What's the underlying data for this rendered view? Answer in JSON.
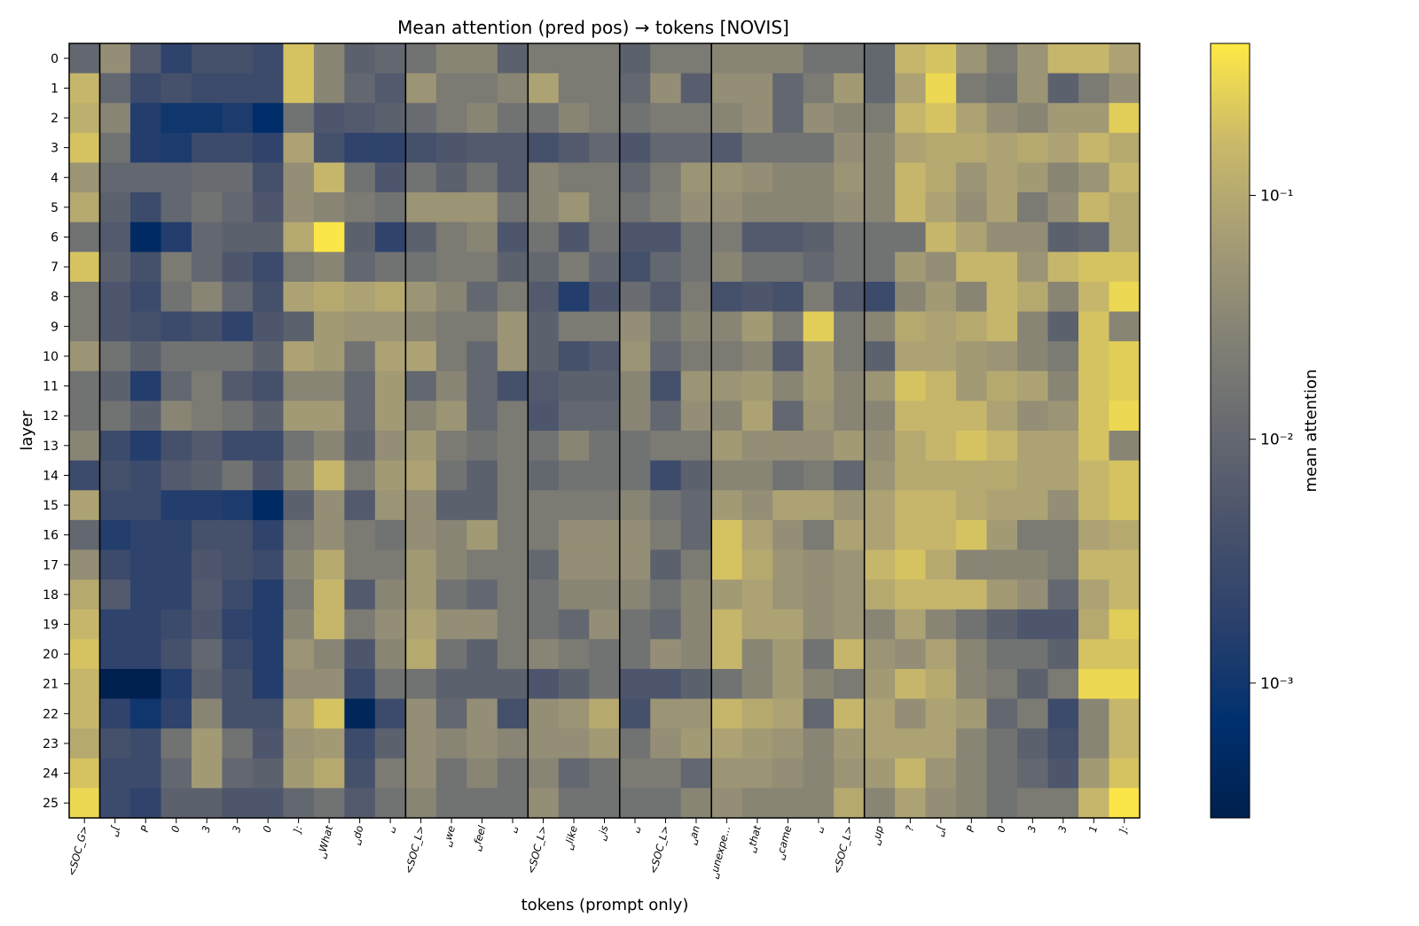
{
  "chart_data": {
    "type": "heatmap",
    "title": "Mean attention (pred pos) → tokens [NOVIS]",
    "xlabel": "tokens (prompt only)",
    "ylabel": "layer",
    "colorbar_label": "mean attention",
    "colormap": "cividis",
    "scale": "log",
    "value_range": [
      0.00028,
      0.42
    ],
    "colorbar_ticks": [
      {
        "value": 0.1,
        "label": "10⁻¹"
      },
      {
        "value": 0.01,
        "label": "10⁻²"
      },
      {
        "value": 0.001,
        "label": "10⁻³"
      }
    ],
    "x_tokens": [
      "<SOC_G>",
      "␣[",
      "P",
      "0",
      "3",
      "3",
      "0",
      "]:",
      "␣What",
      "␣do",
      "␣",
      "<SOC_L>",
      "␣we",
      "␣feel",
      "␣",
      "<SOC_L>",
      "␣like",
      "␣is",
      "␣",
      "<SOC_L>",
      "␣an",
      "␣unexpe...",
      "␣that",
      "␣came",
      "␣",
      "<SOC_L>",
      "␣up",
      "?",
      "␣[",
      "P",
      "0",
      "3",
      "3",
      "1",
      "]:"
    ],
    "y_layers": [
      "0",
      "1",
      "2",
      "3",
      "4",
      "5",
      "6",
      "7",
      "8",
      "9",
      "10",
      "11",
      "12",
      "13",
      "14",
      "15",
      "16",
      "17",
      "18",
      "19",
      "20",
      "21",
      "22",
      "23",
      "24",
      "25"
    ],
    "separator_after_columns": [
      0,
      10,
      14,
      17,
      20,
      25
    ],
    "values": [
      [
        0.01,
        0.04,
        0.006,
        0.002,
        0.004,
        0.004,
        0.003,
        0.2,
        0.03,
        0.008,
        0.01,
        0.015,
        0.03,
        0.03,
        0.008,
        0.02,
        0.02,
        0.02,
        0.008,
        0.02,
        0.02,
        0.03,
        0.03,
        0.03,
        0.015,
        0.015,
        0.01,
        0.15,
        0.2,
        0.05,
        0.02,
        0.05,
        0.15,
        0.15,
        0.08
      ],
      [
        0.15,
        0.01,
        0.003,
        0.004,
        0.003,
        0.003,
        0.003,
        0.2,
        0.03,
        0.01,
        0.006,
        0.05,
        0.02,
        0.02,
        0.03,
        0.08,
        0.02,
        0.02,
        0.01,
        0.04,
        0.007,
        0.04,
        0.04,
        0.01,
        0.02,
        0.06,
        0.01,
        0.08,
        0.3,
        0.02,
        0.015,
        0.05,
        0.008,
        0.02,
        0.04
      ],
      [
        0.12,
        0.03,
        0.0015,
        0.001,
        0.001,
        0.0013,
        0.0006,
        0.015,
        0.005,
        0.006,
        0.008,
        0.012,
        0.02,
        0.03,
        0.015,
        0.015,
        0.03,
        0.02,
        0.015,
        0.02,
        0.02,
        0.03,
        0.04,
        0.01,
        0.04,
        0.03,
        0.02,
        0.15,
        0.2,
        0.08,
        0.04,
        0.03,
        0.06,
        0.06,
        0.25
      ],
      [
        0.2,
        0.015,
        0.0015,
        0.0013,
        0.003,
        0.003,
        0.002,
        0.08,
        0.004,
        0.002,
        0.002,
        0.004,
        0.005,
        0.006,
        0.006,
        0.004,
        0.006,
        0.01,
        0.005,
        0.01,
        0.01,
        0.006,
        0.015,
        0.015,
        0.015,
        0.04,
        0.03,
        0.08,
        0.1,
        0.1,
        0.08,
        0.1,
        0.08,
        0.15,
        0.1
      ],
      [
        0.05,
        0.01,
        0.01,
        0.01,
        0.012,
        0.012,
        0.004,
        0.04,
        0.15,
        0.015,
        0.005,
        0.015,
        0.008,
        0.015,
        0.006,
        0.03,
        0.02,
        0.02,
        0.01,
        0.02,
        0.05,
        0.05,
        0.04,
        0.03,
        0.03,
        0.05,
        0.03,
        0.15,
        0.1,
        0.05,
        0.08,
        0.06,
        0.03,
        0.05,
        0.15
      ],
      [
        0.1,
        0.008,
        0.003,
        0.01,
        0.015,
        0.01,
        0.005,
        0.04,
        0.03,
        0.02,
        0.015,
        0.05,
        0.05,
        0.05,
        0.015,
        0.03,
        0.05,
        0.02,
        0.015,
        0.025,
        0.04,
        0.04,
        0.03,
        0.03,
        0.03,
        0.04,
        0.03,
        0.15,
        0.08,
        0.04,
        0.08,
        0.02,
        0.04,
        0.15,
        0.1
      ],
      [
        0.015,
        0.006,
        0.0005,
        0.0015,
        0.01,
        0.008,
        0.008,
        0.1,
        0.4,
        0.008,
        0.002,
        0.008,
        0.02,
        0.03,
        0.005,
        0.015,
        0.005,
        0.015,
        0.005,
        0.005,
        0.015,
        0.02,
        0.006,
        0.006,
        0.008,
        0.015,
        0.015,
        0.015,
        0.15,
        0.08,
        0.04,
        0.04,
        0.008,
        0.01,
        0.1
      ],
      [
        0.2,
        0.008,
        0.004,
        0.02,
        0.01,
        0.005,
        0.003,
        0.02,
        0.03,
        0.01,
        0.015,
        0.015,
        0.02,
        0.02,
        0.008,
        0.01,
        0.02,
        0.01,
        0.004,
        0.01,
        0.015,
        0.03,
        0.015,
        0.015,
        0.01,
        0.015,
        0.015,
        0.06,
        0.04,
        0.15,
        0.15,
        0.05,
        0.15,
        0.2,
        0.2
      ],
      [
        0.02,
        0.005,
        0.003,
        0.015,
        0.03,
        0.01,
        0.004,
        0.08,
        0.1,
        0.08,
        0.1,
        0.05,
        0.03,
        0.01,
        0.02,
        0.006,
        0.0015,
        0.005,
        0.012,
        0.006,
        0.02,
        0.004,
        0.005,
        0.004,
        0.02,
        0.006,
        0.003,
        0.03,
        0.06,
        0.03,
        0.15,
        0.1,
        0.03,
        0.15,
        0.3
      ],
      [
        0.02,
        0.005,
        0.004,
        0.003,
        0.004,
        0.002,
        0.005,
        0.008,
        0.06,
        0.05,
        0.05,
        0.03,
        0.02,
        0.02,
        0.05,
        0.008,
        0.02,
        0.02,
        0.04,
        0.015,
        0.03,
        0.03,
        0.06,
        0.02,
        0.25,
        0.02,
        0.03,
        0.1,
        0.08,
        0.1,
        0.15,
        0.03,
        0.008,
        0.2,
        0.03
      ],
      [
        0.05,
        0.015,
        0.008,
        0.015,
        0.015,
        0.015,
        0.008,
        0.08,
        0.06,
        0.015,
        0.08,
        0.08,
        0.02,
        0.01,
        0.05,
        0.008,
        0.004,
        0.006,
        0.05,
        0.01,
        0.02,
        0.02,
        0.03,
        0.006,
        0.06,
        0.02,
        0.008,
        0.08,
        0.08,
        0.06,
        0.05,
        0.03,
        0.02,
        0.2,
        0.25
      ],
      [
        0.015,
        0.008,
        0.0015,
        0.01,
        0.02,
        0.006,
        0.004,
        0.03,
        0.03,
        0.01,
        0.06,
        0.01,
        0.03,
        0.01,
        0.004,
        0.006,
        0.008,
        0.008,
        0.03,
        0.004,
        0.05,
        0.05,
        0.06,
        0.03,
        0.06,
        0.03,
        0.05,
        0.2,
        0.15,
        0.06,
        0.1,
        0.08,
        0.03,
        0.2,
        0.25
      ],
      [
        0.015,
        0.015,
        0.008,
        0.03,
        0.02,
        0.015,
        0.008,
        0.06,
        0.06,
        0.01,
        0.06,
        0.03,
        0.05,
        0.01,
        0.02,
        0.005,
        0.01,
        0.01,
        0.03,
        0.01,
        0.04,
        0.03,
        0.08,
        0.01,
        0.05,
        0.03,
        0.03,
        0.15,
        0.15,
        0.15,
        0.08,
        0.04,
        0.05,
        0.2,
        0.3
      ],
      [
        0.03,
        0.003,
        0.0015,
        0.004,
        0.006,
        0.003,
        0.003,
        0.015,
        0.03,
        0.008,
        0.04,
        0.06,
        0.02,
        0.015,
        0.02,
        0.015,
        0.03,
        0.015,
        0.015,
        0.02,
        0.02,
        0.06,
        0.04,
        0.04,
        0.04,
        0.06,
        0.04,
        0.1,
        0.15,
        0.2,
        0.15,
        0.08,
        0.08,
        0.2,
        0.03
      ],
      [
        0.003,
        0.004,
        0.003,
        0.006,
        0.008,
        0.015,
        0.005,
        0.03,
        0.15,
        0.02,
        0.06,
        0.08,
        0.015,
        0.008,
        0.02,
        0.01,
        0.015,
        0.015,
        0.015,
        0.003,
        0.008,
        0.03,
        0.03,
        0.015,
        0.02,
        0.01,
        0.05,
        0.1,
        0.1,
        0.1,
        0.1,
        0.08,
        0.08,
        0.15,
        0.2
      ],
      [
        0.08,
        0.003,
        0.003,
        0.0015,
        0.0015,
        0.0013,
        0.0005,
        0.008,
        0.04,
        0.006,
        0.05,
        0.04,
        0.008,
        0.008,
        0.02,
        0.02,
        0.02,
        0.02,
        0.03,
        0.015,
        0.01,
        0.06,
        0.04,
        0.08,
        0.08,
        0.05,
        0.08,
        0.15,
        0.15,
        0.1,
        0.08,
        0.08,
        0.04,
        0.15,
        0.2
      ],
      [
        0.01,
        0.0015,
        0.002,
        0.002,
        0.004,
        0.004,
        0.002,
        0.02,
        0.04,
        0.02,
        0.015,
        0.04,
        0.03,
        0.06,
        0.02,
        0.02,
        0.04,
        0.04,
        0.04,
        0.02,
        0.01,
        0.2,
        0.08,
        0.04,
        0.02,
        0.08,
        0.08,
        0.15,
        0.15,
        0.2,
        0.06,
        0.02,
        0.02,
        0.08,
        0.1
      ],
      [
        0.04,
        0.003,
        0.002,
        0.002,
        0.005,
        0.004,
        0.003,
        0.03,
        0.1,
        0.02,
        0.02,
        0.06,
        0.03,
        0.02,
        0.02,
        0.01,
        0.04,
        0.04,
        0.04,
        0.008,
        0.02,
        0.2,
        0.1,
        0.05,
        0.04,
        0.05,
        0.15,
        0.2,
        0.1,
        0.03,
        0.03,
        0.03,
        0.02,
        0.15,
        0.15
      ],
      [
        0.1,
        0.006,
        0.002,
        0.002,
        0.006,
        0.003,
        0.0015,
        0.02,
        0.15,
        0.006,
        0.03,
        0.06,
        0.015,
        0.01,
        0.02,
        0.015,
        0.03,
        0.03,
        0.03,
        0.015,
        0.03,
        0.06,
        0.08,
        0.05,
        0.04,
        0.05,
        0.1,
        0.15,
        0.15,
        0.15,
        0.06,
        0.04,
        0.01,
        0.08,
        0.15
      ],
      [
        0.15,
        0.002,
        0.002,
        0.003,
        0.005,
        0.002,
        0.0015,
        0.03,
        0.15,
        0.02,
        0.04,
        0.08,
        0.04,
        0.04,
        0.02,
        0.015,
        0.01,
        0.04,
        0.015,
        0.01,
        0.03,
        0.15,
        0.08,
        0.08,
        0.04,
        0.05,
        0.03,
        0.08,
        0.03,
        0.015,
        0.008,
        0.005,
        0.005,
        0.1,
        0.25
      ],
      [
        0.2,
        0.002,
        0.002,
        0.004,
        0.01,
        0.003,
        0.0015,
        0.05,
        0.03,
        0.005,
        0.03,
        0.1,
        0.015,
        0.008,
        0.02,
        0.03,
        0.02,
        0.015,
        0.015,
        0.04,
        0.03,
        0.15,
        0.03,
        0.06,
        0.015,
        0.15,
        0.05,
        0.04,
        0.08,
        0.03,
        0.015,
        0.015,
        0.008,
        0.2,
        0.2
      ],
      [
        0.15,
        0.0003,
        0.0003,
        0.0015,
        0.008,
        0.004,
        0.0015,
        0.04,
        0.04,
        0.003,
        0.015,
        0.015,
        0.008,
        0.008,
        0.008,
        0.005,
        0.008,
        0.015,
        0.005,
        0.005,
        0.008,
        0.015,
        0.03,
        0.06,
        0.03,
        0.02,
        0.06,
        0.15,
        0.1,
        0.03,
        0.02,
        0.008,
        0.02,
        0.3,
        0.3
      ],
      [
        0.15,
        0.002,
        0.001,
        0.002,
        0.03,
        0.004,
        0.004,
        0.08,
        0.2,
        0.0004,
        0.003,
        0.04,
        0.01,
        0.04,
        0.004,
        0.04,
        0.05,
        0.1,
        0.004,
        0.05,
        0.05,
        0.15,
        0.1,
        0.08,
        0.01,
        0.15,
        0.08,
        0.04,
        0.08,
        0.06,
        0.01,
        0.02,
        0.003,
        0.03,
        0.15
      ],
      [
        0.1,
        0.004,
        0.003,
        0.015,
        0.06,
        0.015,
        0.005,
        0.05,
        0.06,
        0.003,
        0.008,
        0.04,
        0.03,
        0.04,
        0.03,
        0.04,
        0.04,
        0.06,
        0.015,
        0.04,
        0.06,
        0.08,
        0.06,
        0.05,
        0.03,
        0.06,
        0.08,
        0.08,
        0.08,
        0.03,
        0.015,
        0.008,
        0.004,
        0.03,
        0.15
      ],
      [
        0.2,
        0.003,
        0.003,
        0.01,
        0.06,
        0.01,
        0.008,
        0.06,
        0.1,
        0.004,
        0.02,
        0.04,
        0.015,
        0.03,
        0.015,
        0.03,
        0.01,
        0.015,
        0.02,
        0.02,
        0.01,
        0.05,
        0.05,
        0.04,
        0.03,
        0.05,
        0.06,
        0.15,
        0.05,
        0.03,
        0.015,
        0.01,
        0.005,
        0.06,
        0.2
      ],
      [
        0.3,
        0.003,
        0.002,
        0.008,
        0.008,
        0.005,
        0.005,
        0.01,
        0.015,
        0.006,
        0.015,
        0.03,
        0.015,
        0.015,
        0.015,
        0.04,
        0.015,
        0.015,
        0.015,
        0.015,
        0.03,
        0.04,
        0.03,
        0.03,
        0.03,
        0.1,
        0.03,
        0.08,
        0.04,
        0.03,
        0.015,
        0.02,
        0.02,
        0.15,
        0.4
      ]
    ]
  }
}
